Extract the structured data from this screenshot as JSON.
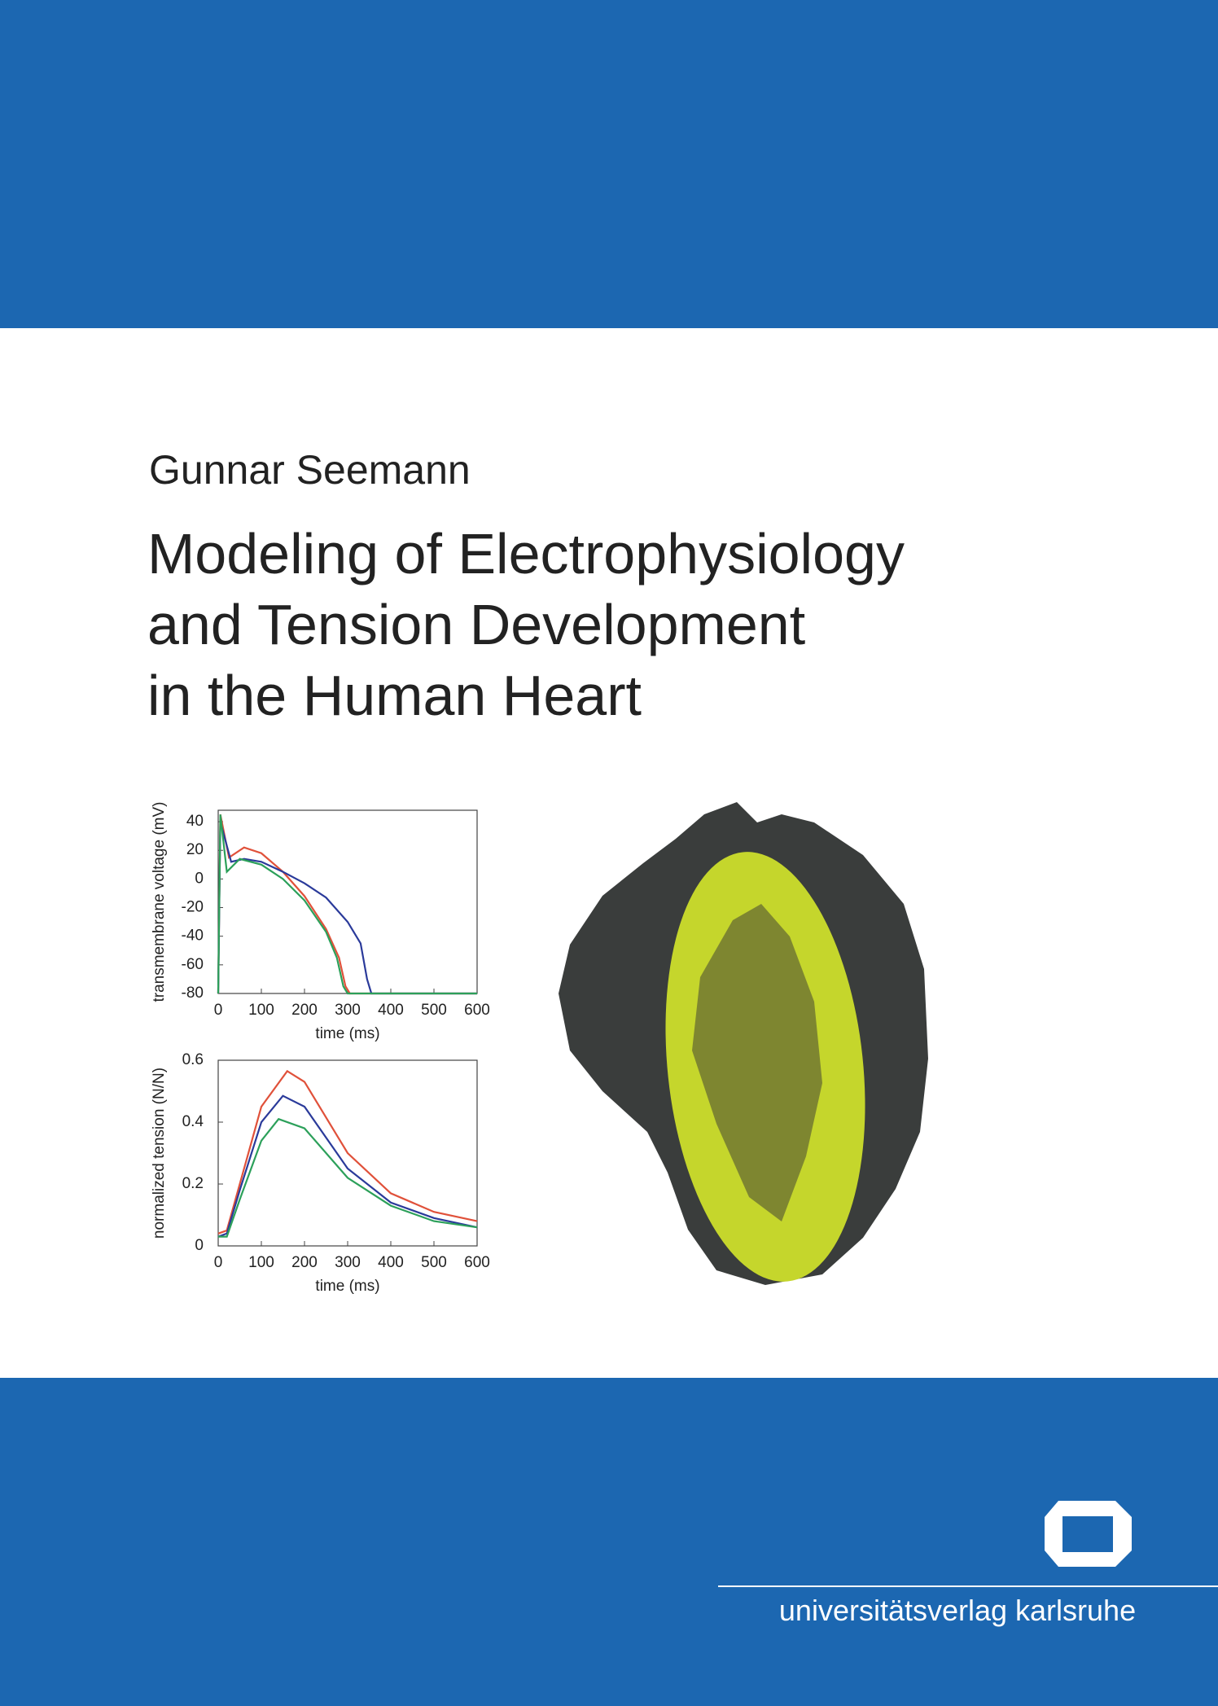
{
  "author": "Gunnar Seemann",
  "title": [
    "Modeling of Electrophysiology",
    "and Tension Development",
    "in the Human Heart"
  ],
  "publisher": "universitätsverlag karlsruhe",
  "chart_data": [
    {
      "type": "line",
      "xlabel": "time (ms)",
      "ylabel": "transmembrane voltage (mV)",
      "xlim": [
        0,
        600
      ],
      "ylim": [
        -80,
        48
      ],
      "xticks": [
        0,
        100,
        200,
        300,
        400,
        500,
        600
      ],
      "yticks": [
        -80,
        -60,
        -40,
        -20,
        0,
        20,
        40
      ],
      "series": [
        {
          "color": "#e0513a",
          "x": [
            0,
            5,
            25,
            60,
            100,
            150,
            200,
            250,
            280,
            295,
            305,
            600
          ],
          "values": [
            -80,
            45,
            15,
            22,
            18,
            5,
            -12,
            -35,
            -55,
            -75,
            -80,
            -80
          ]
        },
        {
          "color": "#2a3a9a",
          "x": [
            0,
            5,
            30,
            60,
            100,
            150,
            200,
            250,
            300,
            330,
            345,
            355,
            600
          ],
          "values": [
            -80,
            40,
            12,
            14,
            12,
            5,
            -3,
            -13,
            -30,
            -45,
            -70,
            -80,
            -80
          ]
        },
        {
          "color": "#2ca05a",
          "x": [
            0,
            5,
            20,
            50,
            100,
            150,
            200,
            250,
            275,
            290,
            300,
            600
          ],
          "values": [
            -80,
            45,
            5,
            14,
            10,
            0,
            -15,
            -37,
            -55,
            -75,
            -80,
            -80
          ]
        }
      ]
    },
    {
      "type": "line",
      "xlabel": "time (ms)",
      "ylabel": "normalized tension (N/N)",
      "xlim": [
        0,
        600
      ],
      "ylim": [
        0,
        0.6
      ],
      "xticks": [
        0,
        100,
        200,
        300,
        400,
        500,
        600
      ],
      "yticks": [
        0,
        0.2,
        0.4,
        0.6
      ],
      "series": [
        {
          "color": "#e0513a",
          "x": [
            0,
            20,
            50,
            100,
            160,
            200,
            300,
            400,
            500,
            600
          ],
          "values": [
            0.04,
            0.05,
            0.2,
            0.45,
            0.565,
            0.53,
            0.3,
            0.17,
            0.11,
            0.08
          ]
        },
        {
          "color": "#2a3a9a",
          "x": [
            0,
            20,
            50,
            100,
            150,
            200,
            300,
            400,
            500,
            600
          ],
          "values": [
            0.03,
            0.04,
            0.18,
            0.4,
            0.485,
            0.45,
            0.25,
            0.14,
            0.09,
            0.06
          ]
        },
        {
          "color": "#2ca05a",
          "x": [
            0,
            20,
            50,
            100,
            140,
            200,
            300,
            400,
            500,
            600
          ],
          "values": [
            0.03,
            0.03,
            0.15,
            0.34,
            0.41,
            0.38,
            0.22,
            0.13,
            0.08,
            0.06
          ]
        }
      ]
    }
  ]
}
